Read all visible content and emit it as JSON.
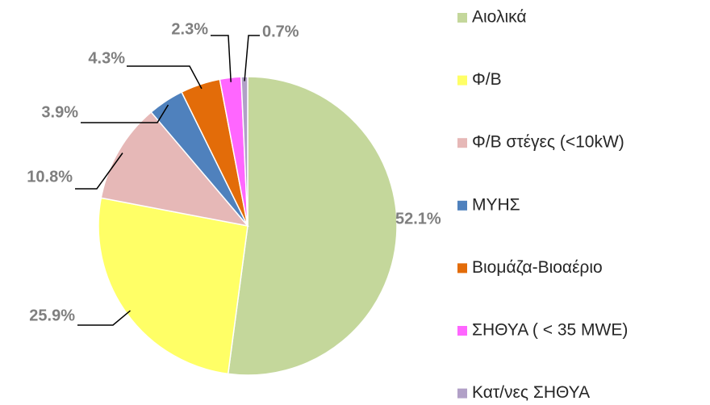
{
  "chart_data": {
    "type": "pie",
    "categories": [
      "Αιολικά",
      "Φ/Β",
      "Φ/Β στέγες (<10kW)",
      "ΜΥΗΣ",
      "Βιομάζα-Βιοαέριο",
      "ΣΗΘΥΑ ( < 35 MWE)",
      "Κατ/νες ΣΗΘΥΑ"
    ],
    "values": [
      52.1,
      25.9,
      10.8,
      3.9,
      4.3,
      2.3,
      0.7
    ],
    "value_labels": [
      "52.1%",
      "25.9%",
      "10.8%",
      "3.9%",
      "4.3%",
      "2.3%",
      "0.7%"
    ],
    "colors": [
      "#c4d79b",
      "#ffff66",
      "#e6b8b7",
      "#4f81bd",
      "#e36c09",
      "#ff66ff",
      "#b1a0c7"
    ],
    "legend": "right"
  }
}
